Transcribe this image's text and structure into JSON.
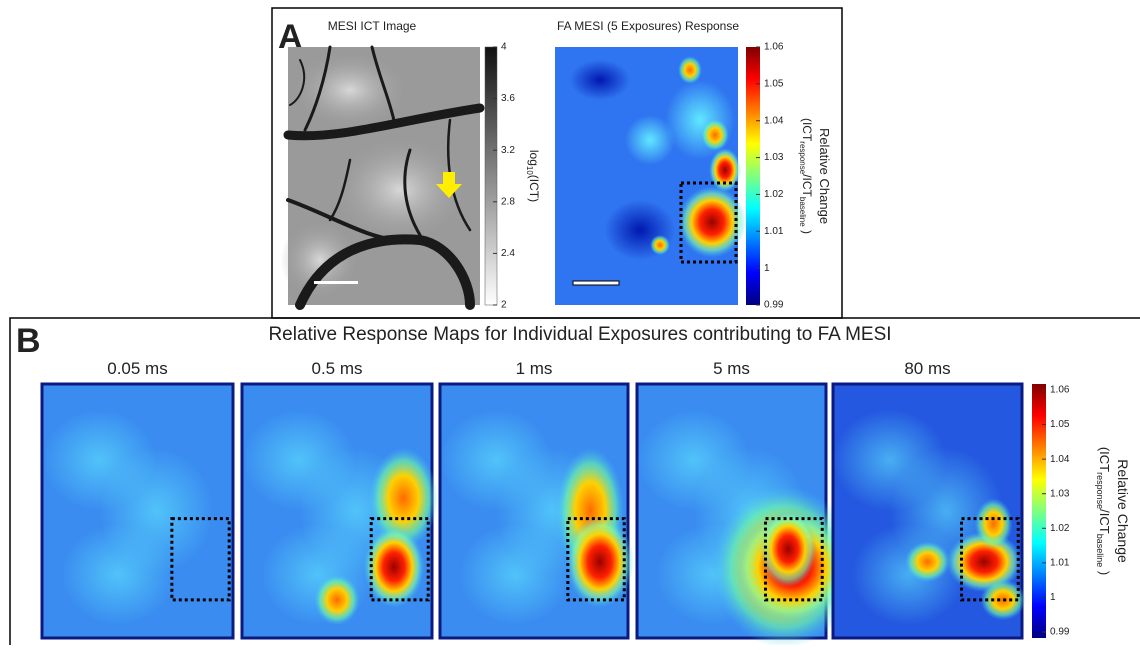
{
  "panel_a": {
    "label": "A",
    "left": {
      "title": "MESI ICT Image",
      "colorbar_ticks": [
        "4",
        "3.6",
        "3.2",
        "2.8",
        "2.4",
        "2"
      ],
      "colorbar_label": [
        "log",
        "10",
        "(ICT)"
      ]
    },
    "right": {
      "title": "FA MESI (5 Exposures) Response",
      "colorbar_ticks": [
        "1.06",
        "1.05",
        "1.04",
        "1.03",
        "1.02",
        "1.01",
        "1",
        "0.99"
      ],
      "colorbar_label": {
        "line1": "Relative Change",
        "line2": [
          "(ICT",
          "response",
          "/ICT",
          "baseline",
          " )"
        ]
      }
    }
  },
  "panel_b": {
    "label": "B",
    "title": "Relative Response Maps for Individual Exposures contributing to FA MESI",
    "maps": [
      "0.05 ms",
      "0.5 ms",
      "1 ms",
      "5 ms",
      "80 ms"
    ],
    "colorbar_ticks": [
      "1.06",
      "1.05",
      "1.04",
      "1.03",
      "1.02",
      "1.01",
      "1",
      "0.99"
    ],
    "colorbar_label": {
      "line1": "Relative Change",
      "line2": [
        "(ICT",
        "response",
        "/ICT",
        "baseline",
        " )"
      ]
    }
  }
}
